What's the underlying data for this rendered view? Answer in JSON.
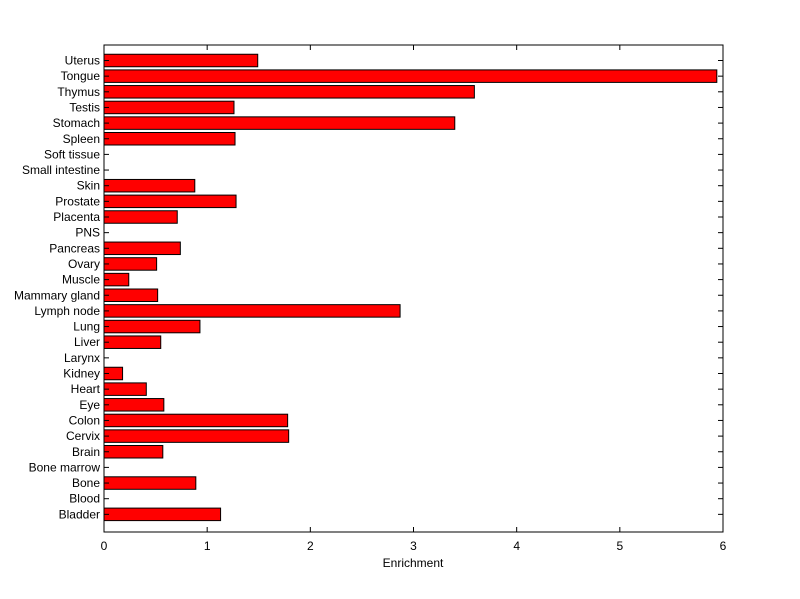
{
  "chart_data": {
    "type": "bar",
    "orientation": "horizontal",
    "title": "",
    "xlabel": "Enrichment",
    "ylabel": "",
    "xlim": [
      0,
      6
    ],
    "xticks": [
      0,
      1,
      2,
      3,
      4,
      5,
      6
    ],
    "grid": false,
    "legend": "none",
    "bar_color": "#ff0000",
    "categories": [
      "Uterus",
      "Tongue",
      "Thymus",
      "Testis",
      "Stomach",
      "Spleen",
      "Soft tissue",
      "Small intestine",
      "Skin",
      "Prostate",
      "Placenta",
      "PNS",
      "Pancreas",
      "Ovary",
      "Muscle",
      "Mammary gland",
      "Lymph node",
      "Lung",
      "Liver",
      "Larynx",
      "Kidney",
      "Heart",
      "Eye",
      "Colon",
      "Cervix",
      "Brain",
      "Bone marrow",
      "Bone",
      "Blood",
      "Bladder"
    ],
    "values": [
      1.49,
      5.94,
      3.59,
      1.26,
      3.4,
      1.27,
      0,
      0,
      0.88,
      1.28,
      0.71,
      0,
      0.74,
      0.51,
      0.24,
      0.52,
      2.87,
      0.93,
      0.55,
      0,
      0.18,
      0.41,
      0.58,
      1.78,
      1.79,
      0.57,
      0,
      0.89,
      0,
      1.13
    ]
  }
}
